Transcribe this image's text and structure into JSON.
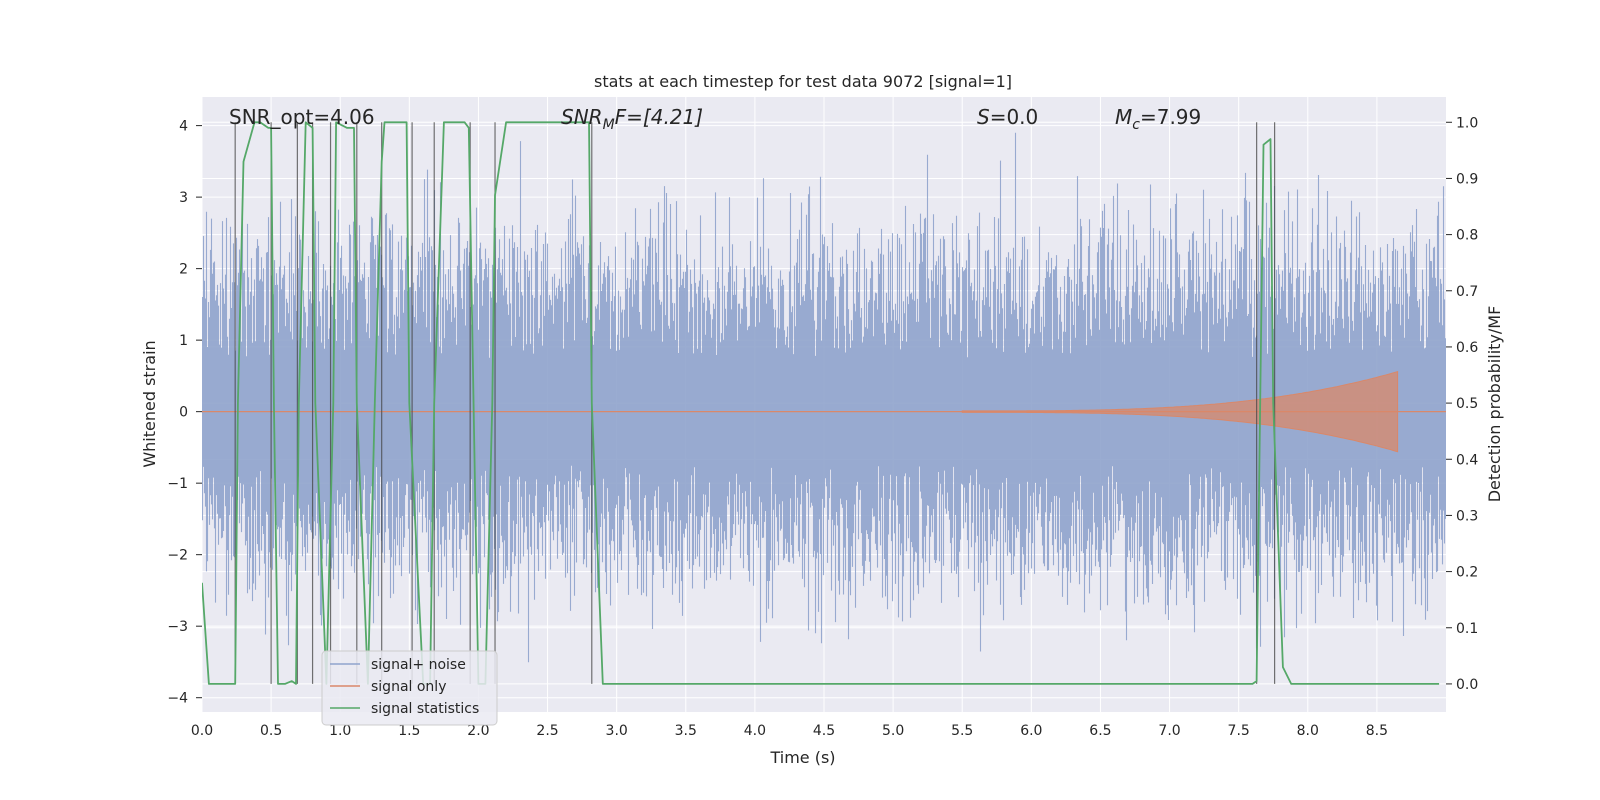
{
  "chart_data": {
    "type": "line",
    "title": "stats at each timestep for test data 9072 [signal=1]",
    "xlabel": "Time (s)",
    "ylabel": "Whitened strain",
    "y2label": "Detection probability/MF",
    "xlim": [
      0.0,
      9.0
    ],
    "ylim": [
      -4.2,
      4.4
    ],
    "y2lim": [
      -0.05,
      1.045
    ],
    "xticks": [
      "0.0",
      "0.5",
      "1.0",
      "1.5",
      "2.0",
      "2.5",
      "3.0",
      "3.5",
      "4.0",
      "4.5",
      "5.0",
      "5.5",
      "6.0",
      "6.5",
      "7.0",
      "7.5",
      "8.0",
      "8.5"
    ],
    "yticks": [
      "4",
      "3",
      "2",
      "1",
      "0",
      "−1",
      "−2",
      "−3",
      "−4"
    ],
    "y2ticks": [
      "1.0",
      "0.9",
      "0.8",
      "0.7",
      "0.6",
      "0.5",
      "0.4",
      "0.3",
      "0.2",
      "0.1",
      "0.0"
    ],
    "annotations": {
      "snr_opt": "SNR_opt=4.06",
      "snr_mf_base": "SNR",
      "snr_mf_sub": "M",
      "snr_mf_rest": "F=[4.21]",
      "s_var": "S",
      "s_val": "=0.0",
      "mc_base": "M",
      "mc_sub": "c",
      "mc_val": "=7.99"
    },
    "series": [
      {
        "name": "signal+ noise",
        "color": "#8fa3cc",
        "noise_std": 0.75,
        "peak_max": 3.9,
        "peak_min": -3.9
      },
      {
        "name": "signal only",
        "color": "#d9886a",
        "chirp_start": 5.5,
        "chirp_end": 8.65,
        "peak_amplitude": 0.55
      },
      {
        "name": "signal statistics",
        "color": "#55a868",
        "x": [
          0.0,
          0.05,
          0.1,
          0.24,
          0.26,
          0.3,
          0.38,
          0.42,
          0.48,
          0.5,
          0.52,
          0.55,
          0.6,
          0.65,
          0.68,
          0.7,
          0.75,
          0.8,
          0.82,
          0.9,
          0.95,
          0.97,
          1.05,
          1.1,
          1.12,
          1.2,
          1.25,
          1.3,
          1.32,
          1.38,
          1.48,
          1.5,
          1.6,
          1.65,
          1.68,
          1.75,
          1.9,
          1.93,
          2.0,
          2.05,
          2.1,
          2.12,
          2.2,
          2.8,
          2.82,
          2.9,
          2.95,
          3.05,
          7.6,
          7.63,
          7.68,
          7.73,
          7.75,
          7.82,
          7.88,
          8.95
        ],
        "y": [
          0.18,
          0.0,
          0.0,
          0.0,
          0.5,
          0.93,
          1.0,
          1.0,
          0.99,
          0.99,
          0.5,
          0.0,
          0.0,
          0.005,
          0.0,
          0.5,
          1.0,
          0.99,
          0.5,
          0.0,
          0.5,
          1.0,
          0.99,
          0.99,
          0.5,
          0.0,
          0.5,
          0.93,
          1.0,
          1.0,
          1.0,
          0.5,
          0.0,
          0.0,
          0.5,
          1.0,
          1.0,
          0.99,
          0.0,
          0.0,
          0.5,
          0.87,
          1.0,
          1.0,
          0.5,
          0.0,
          0.0,
          0.0,
          0.0,
          0.005,
          0.96,
          0.97,
          0.5,
          0.03,
          0.0,
          0.0
        ]
      }
    ],
    "vlines": [
      0.24,
      0.5,
      0.69,
      0.8,
      0.93,
      1.12,
      1.3,
      1.52,
      1.68,
      1.94,
      2.12,
      2.82,
      7.63,
      7.76
    ],
    "legend_position": "lower-left",
    "grid": true
  }
}
